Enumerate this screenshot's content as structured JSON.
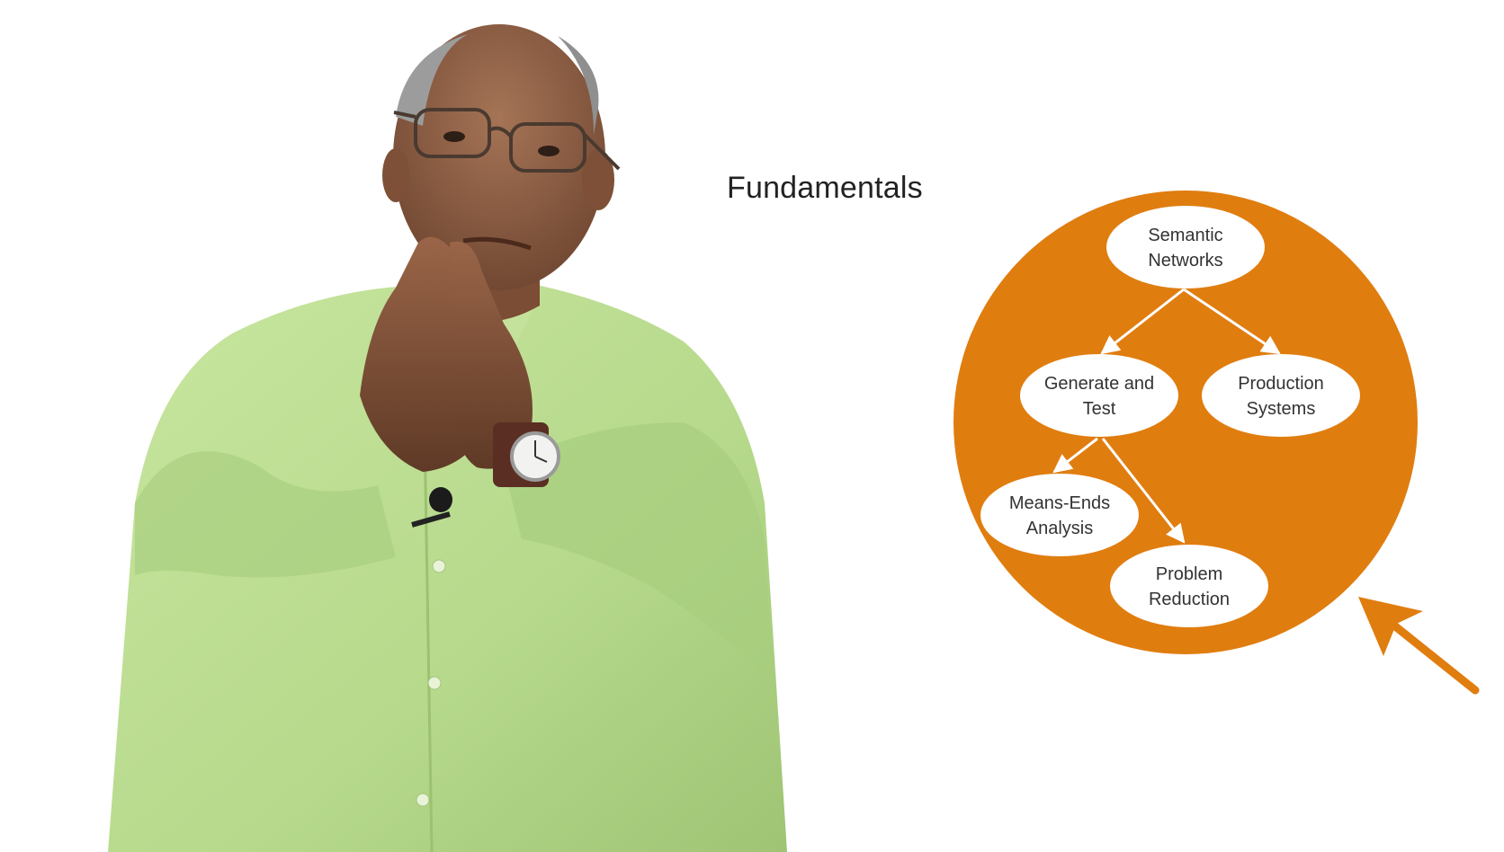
{
  "slide": {
    "title": "Fundamentals"
  },
  "diagram": {
    "accent_color": "#E07D0F",
    "node_fill": "#ffffff",
    "node_text_color": "#333333",
    "nodes": {
      "semantic_networks": [
        "Semantic",
        "Networks"
      ],
      "generate_and_test": [
        "Generate and",
        "Test"
      ],
      "production_systems": [
        "Production",
        "Systems"
      ],
      "means_ends_analysis": [
        "Means-Ends",
        "Analysis"
      ],
      "problem_reduction": [
        "Problem",
        "Reduction"
      ]
    },
    "edges": [
      [
        "semantic_networks",
        "generate_and_test"
      ],
      [
        "semantic_networks",
        "production_systems"
      ],
      [
        "generate_and_test",
        "means_ends_analysis"
      ],
      [
        "generate_and_test",
        "problem_reduction"
      ]
    ]
  },
  "presenter": {
    "shirt_color": "#B9DB8E",
    "skin_color": "#8A5A3F"
  }
}
